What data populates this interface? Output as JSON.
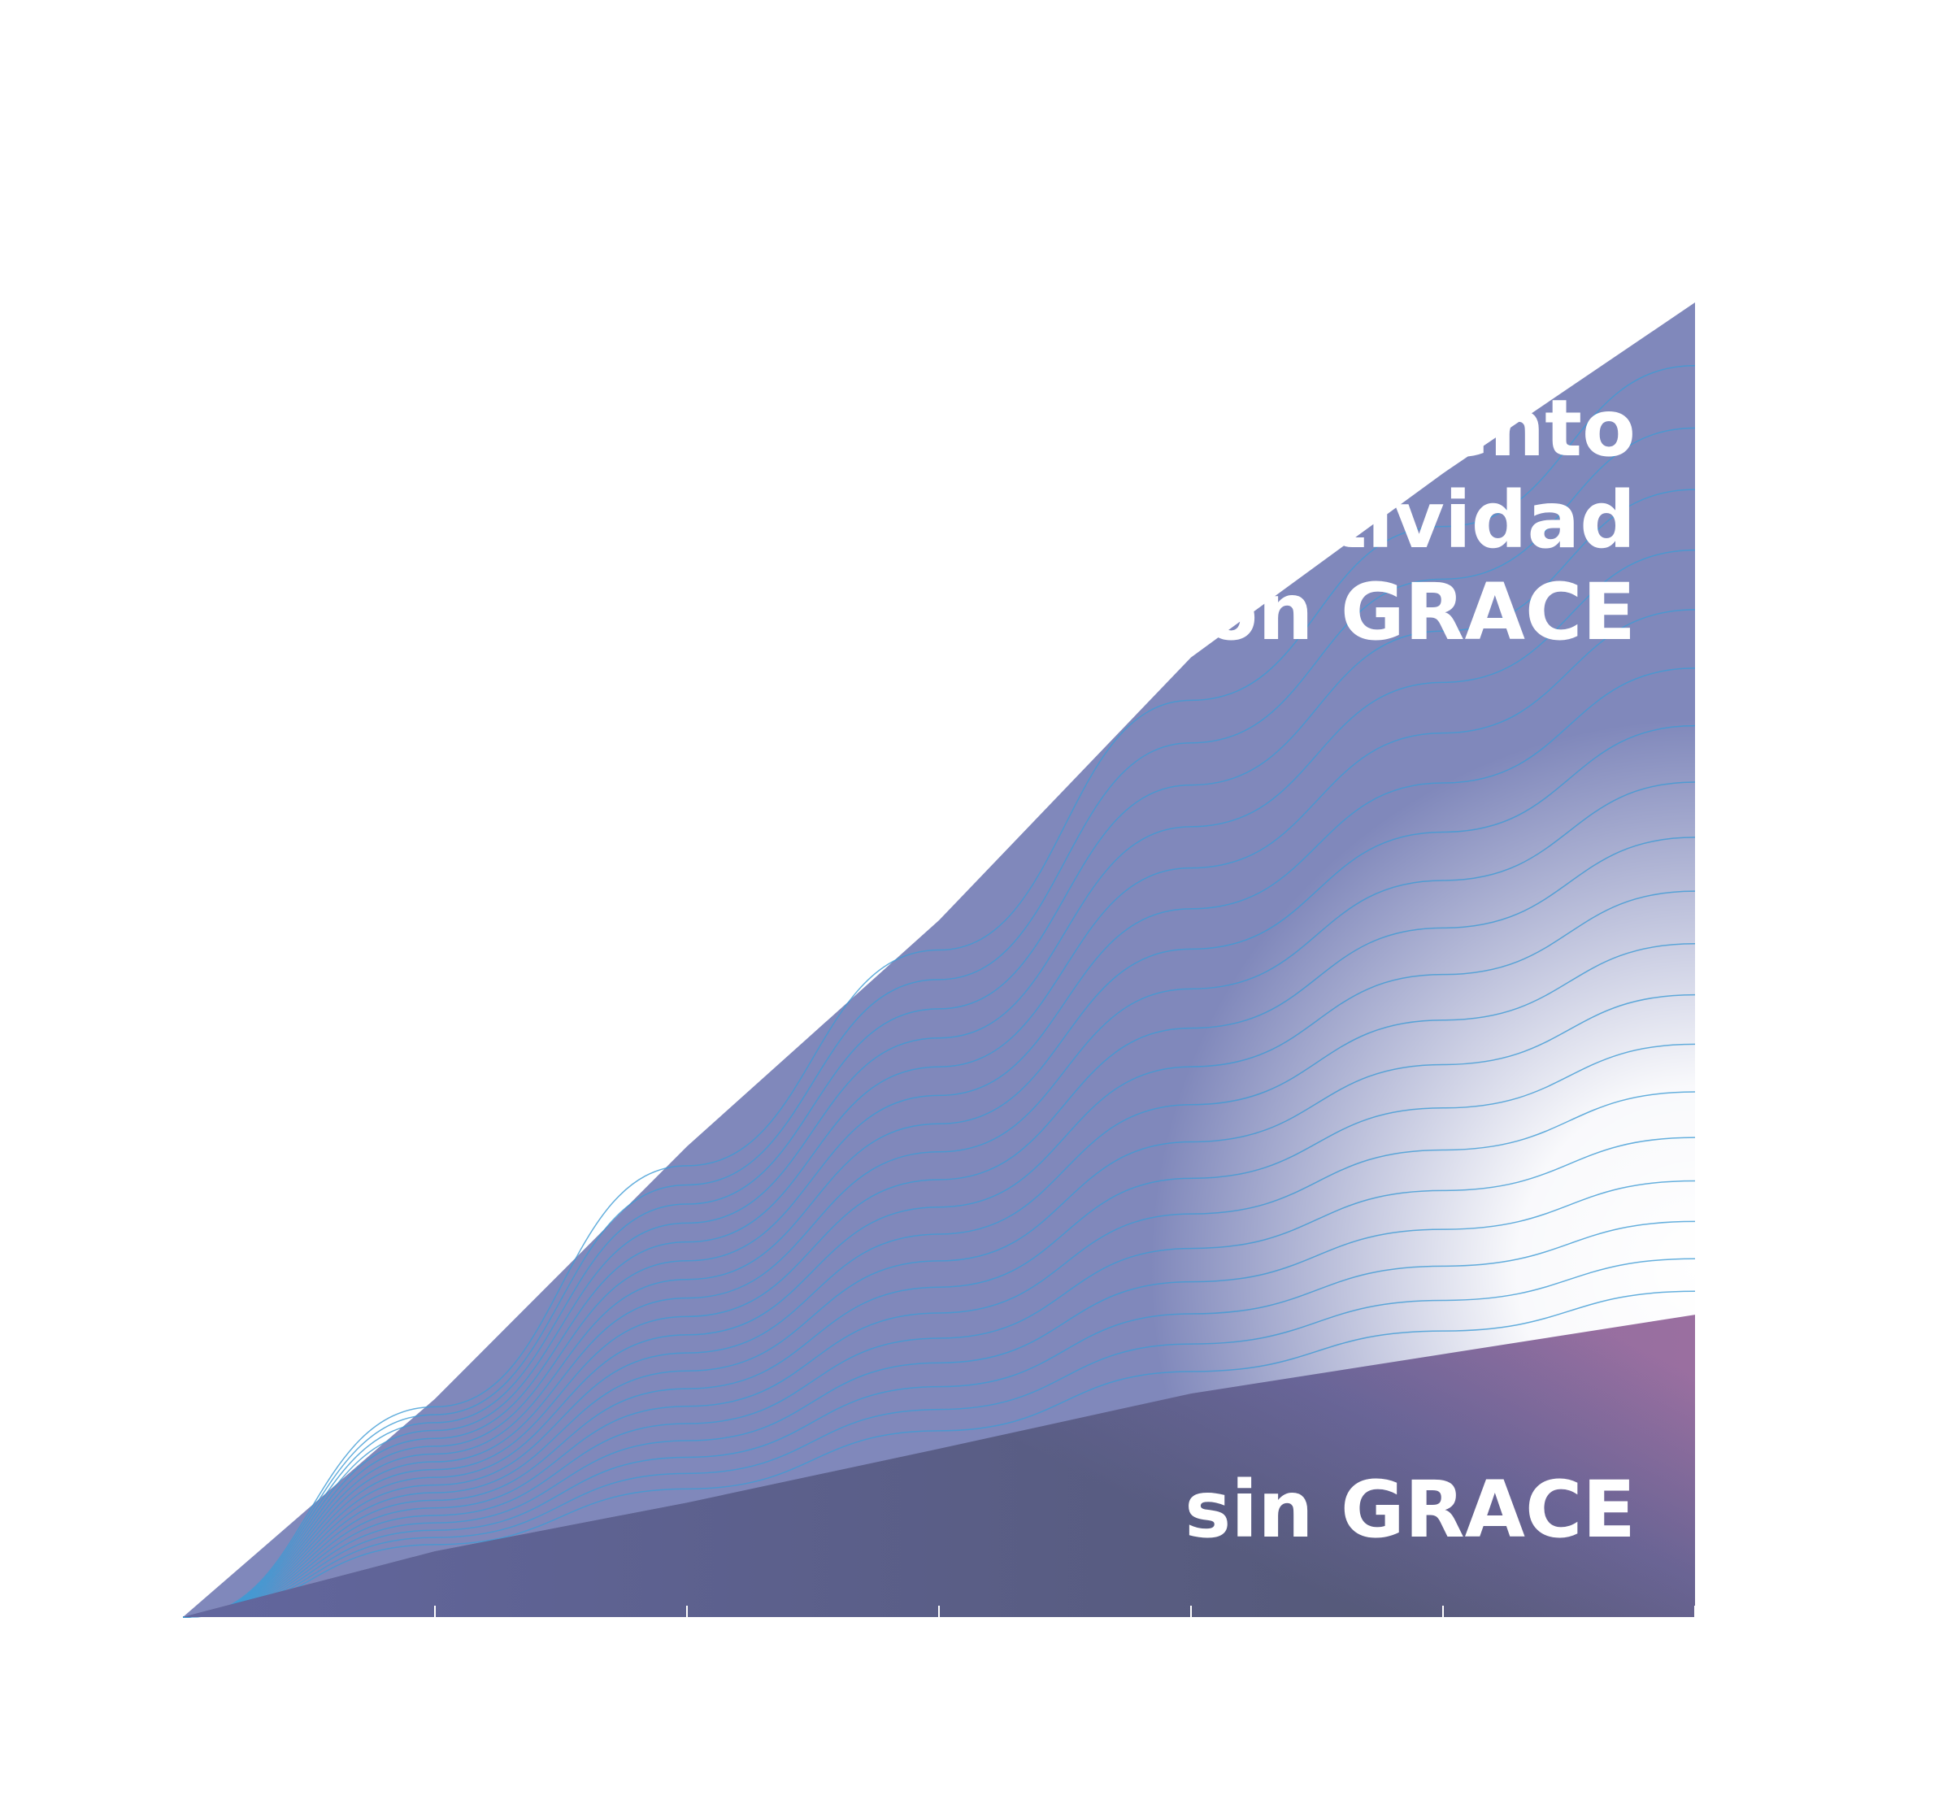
{
  "chart_data": {
    "type": "area",
    "x": [
      0,
      1,
      2,
      3,
      4,
      5,
      6
    ],
    "xlim": [
      0,
      6
    ],
    "xticks": [
      1,
      2,
      3,
      4,
      5,
      6
    ],
    "ylim": [
      0,
      100
    ],
    "series": [
      {
        "name": "Incremento de productividad con GRACE",
        "label_lines": [
          "Incremento",
          "de productividad",
          "con GRACE"
        ],
        "color": "#8088bb",
        "values": [
          0,
          16.6,
          35.8,
          53,
          73,
          87,
          100
        ]
      },
      {
        "name": "sin GRACE",
        "color": "#5f6298",
        "values": [
          0,
          5,
          8.7,
          12.8,
          17,
          20,
          23
        ]
      }
    ]
  }
}
